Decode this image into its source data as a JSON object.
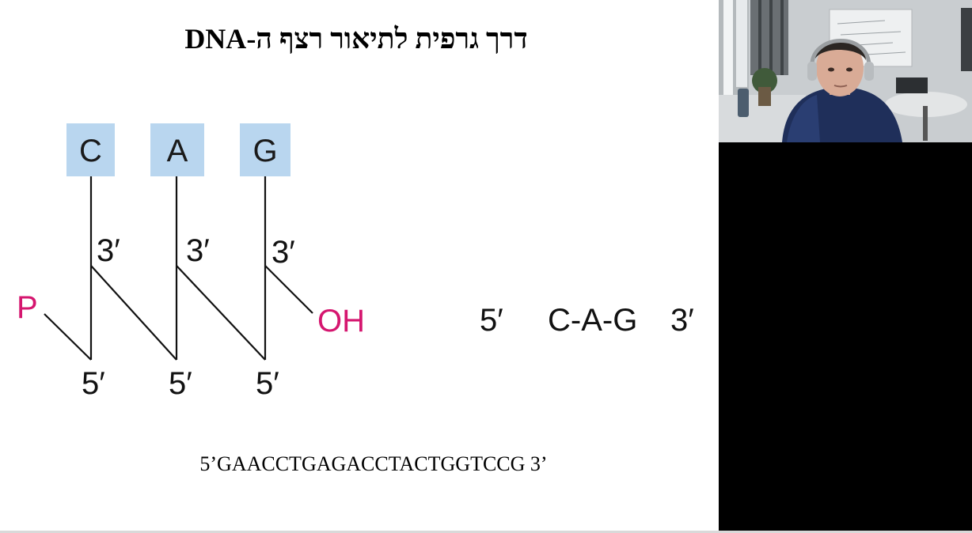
{
  "slide": {
    "title": "דרך גרפית לתיאור רצף ה-DNA",
    "diagram": {
      "bases": [
        "C",
        "A",
        "G"
      ],
      "prime3_label": "3′",
      "prime5_label": "5′",
      "phosphate_label": "P",
      "hydroxyl_label": "OH",
      "shorthand": {
        "end5": "5′",
        "sequence": "C-A-G",
        "end3": "3′"
      }
    },
    "sequence_text": "5’GAACCTGAGACCTACTGGTCCG 3’"
  },
  "webcam": {
    "description_icon": "presenter-video-icon"
  },
  "colors": {
    "base_box": "#b9d6ef",
    "accent_magenta": "#d5166f",
    "text": "#000000"
  }
}
